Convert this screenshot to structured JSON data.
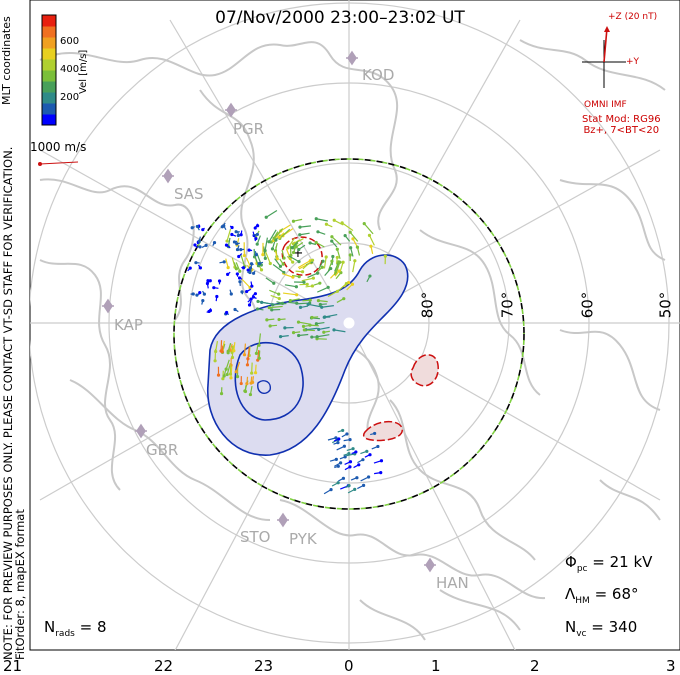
{
  "title": "07/Nov/2000 23:00–23:02 UT",
  "side_note": {
    "line1": "NOTE: FOR PREVIEW PURPOSES ONLY. PLEASE CONTACT VT-SD STAFF FOR VERIFICATION.",
    "line2": "FitOrder: 8, mapEX format"
  },
  "coord_label": "MLT coordinates",
  "colorbar": {
    "unit": "Vel [m/s]",
    "ticks": [
      "600",
      "400",
      "200"
    ],
    "colors": [
      "#0000ff",
      "#1c5ab0",
      "#2f8b88",
      "#48a05a",
      "#7bbf3a",
      "#b0d030",
      "#e8d020",
      "#f0a020",
      "#f07020",
      "#e82010"
    ]
  },
  "reference_vector": "1000 m/s",
  "imf": {
    "z_label": "+Z (20 nT)",
    "y_label": "+Y",
    "source": "OMNI IMF"
  },
  "stat_model": {
    "line1": "Stat Mod: RG96",
    "line2": "Bz+, 7<BT<20"
  },
  "parameters": {
    "phi_symbol": "Φ",
    "phi_sub": "pc",
    "phi_value": "= 21 kV",
    "lambda_symbol": "Λ",
    "lambda_sub": "HM",
    "lambda_value": "= 68°",
    "nvc_symbol": "N",
    "nvc_sub": "vc",
    "nvc_value": "= 340",
    "nrads_symbol": "N",
    "nrads_sub": "rads",
    "nrads_value": "= 8"
  },
  "mlt_ticks": [
    "21",
    "22",
    "23",
    "0",
    "1",
    "2",
    "3"
  ],
  "lat_labels": [
    "80°",
    "70°",
    "60°",
    "50°"
  ],
  "stations": [
    "KOD",
    "PGR",
    "SAS",
    "KAP",
    "GBR",
    "STO",
    "PYK",
    "HAN"
  ],
  "colors": {
    "negative_contour": "#1030b0",
    "positive_contour": "#cc1010",
    "coastline": "#c8c8c8",
    "grid": "#cccccc",
    "station": "#b0a0b8"
  }
}
